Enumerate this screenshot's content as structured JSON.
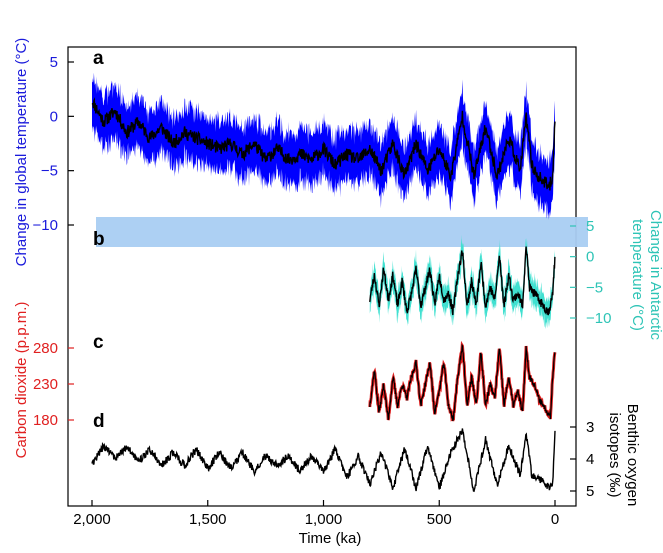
{
  "chart_data": [
    {
      "panel": "a",
      "type": "line",
      "ylabel": "Change in global temperature (°C)",
      "ylabel_color": "#1a1adb",
      "band_color": "#0000ff",
      "yticks": [
        5,
        0,
        -5,
        -10
      ],
      "ylim": [
        -10.5,
        6.5
      ],
      "xlim": [
        2000,
        0
      ],
      "series": [
        {
          "x": [
            2000,
            1950,
            1900,
            1850,
            1800,
            1750,
            1700,
            1650,
            1600,
            1550,
            1500,
            1450,
            1400,
            1350,
            1300,
            1250,
            1200,
            1150,
            1100,
            1050,
            1000,
            950,
            900,
            850,
            800,
            750,
            700,
            650,
            600,
            550,
            500,
            450,
            400,
            350,
            300,
            250,
            200,
            150,
            125,
            100,
            75,
            50,
            25,
            10,
            0
          ],
          "y": [
            1.5,
            -0.5,
            0.5,
            -1.5,
            -0.5,
            -2,
            -1,
            -2.5,
            -1.5,
            -2,
            -2.5,
            -3,
            -2.5,
            -3.5,
            -2.5,
            -4,
            -3,
            -4,
            -3.5,
            -4,
            -3,
            -4.5,
            -3.5,
            -4,
            -3,
            -5,
            -2.5,
            -5.5,
            -2.5,
            -5,
            -3,
            -5.5,
            0,
            -5.5,
            -1,
            -5.5,
            -2,
            -5,
            0,
            -4.5,
            -5.5,
            -6,
            -6.5,
            -5.5,
            0
          ]
        }
      ]
    },
    {
      "panel": "b",
      "type": "line",
      "ylabel": "Change in Antarctic temperature (°C)",
      "ylabel_color": "#2ec4b6",
      "band_color": "#40e0d0",
      "yticks": [
        5,
        0,
        -5,
        -10
      ],
      "ylim": [
        -11,
        6
      ],
      "series": [
        {
          "x": [
            800,
            780,
            760,
            740,
            720,
            700,
            680,
            660,
            640,
            620,
            600,
            580,
            560,
            540,
            520,
            500,
            480,
            460,
            440,
            420,
            400,
            380,
            360,
            340,
            320,
            300,
            280,
            260,
            240,
            220,
            200,
            180,
            160,
            140,
            125,
            110,
            90,
            70,
            50,
            30,
            20,
            10,
            0
          ],
          "y": [
            -7,
            -3,
            -8,
            -2,
            -7,
            -3,
            -8,
            -4,
            -9,
            -6,
            -2,
            -8,
            -5,
            -2,
            -8,
            -3,
            -7,
            -6,
            -9,
            -3,
            1,
            -8,
            -4,
            -8,
            -1,
            -8,
            -5,
            -7,
            0,
            -8,
            -3,
            -7,
            -6,
            -8,
            2,
            -5,
            -6,
            -7,
            -8,
            -9,
            -8,
            -6,
            0
          ]
        }
      ]
    },
    {
      "panel": "c",
      "type": "line",
      "ylabel": "Carbon dioxide (p.p.m.)",
      "ylabel_color": "#e02020",
      "yticks": [
        280,
        230,
        180
      ],
      "ylim": [
        160,
        300
      ],
      "series": [
        {
          "x": [
            800,
            780,
            760,
            740,
            720,
            700,
            680,
            660,
            640,
            620,
            600,
            580,
            560,
            540,
            520,
            500,
            480,
            460,
            440,
            420,
            400,
            380,
            360,
            340,
            320,
            300,
            280,
            260,
            240,
            220,
            200,
            180,
            160,
            140,
            125,
            110,
            90,
            70,
            50,
            30,
            20,
            10,
            0
          ],
          "y": [
            200,
            250,
            190,
            230,
            180,
            240,
            200,
            230,
            210,
            240,
            260,
            200,
            230,
            260,
            190,
            220,
            260,
            200,
            180,
            240,
            285,
            200,
            240,
            200,
            275,
            200,
            230,
            210,
            280,
            200,
            240,
            200,
            220,
            190,
            280,
            240,
            230,
            210,
            200,
            190,
            185,
            240,
            280
          ]
        }
      ]
    },
    {
      "panel": "d",
      "type": "line",
      "ylabel": "Benthic oxygen isotopes (‰)",
      "ylabel_color": "#000000",
      "yticks": [
        3,
        4,
        5
      ],
      "ylim": [
        5.4,
        2.6
      ],
      "series": [
        {
          "x": [
            2000,
            1950,
            1900,
            1850,
            1800,
            1750,
            1700,
            1650,
            1600,
            1550,
            1500,
            1450,
            1400,
            1350,
            1300,
            1250,
            1200,
            1150,
            1100,
            1050,
            1000,
            950,
            900,
            850,
            800,
            750,
            700,
            650,
            600,
            550,
            500,
            450,
            400,
            350,
            300,
            250,
            200,
            150,
            125,
            100,
            75,
            50,
            25,
            10,
            0
          ],
          "y": [
            4.2,
            3.6,
            4.0,
            3.6,
            4.1,
            3.7,
            4.2,
            3.8,
            4.2,
            3.7,
            4.3,
            3.8,
            4.3,
            3.8,
            4.4,
            3.9,
            4.2,
            3.9,
            4.4,
            3.9,
            4.4,
            3.7,
            4.6,
            3.9,
            4.8,
            3.8,
            4.9,
            3.7,
            4.9,
            3.6,
            4.9,
            3.8,
            3.1,
            5.0,
            3.4,
            4.8,
            3.6,
            4.5,
            3.2,
            4.5,
            4.6,
            4.7,
            4.9,
            4.8,
            3.2
          ]
        }
      ]
    }
  ],
  "xaxis": {
    "label": "Time (ka)",
    "ticks": [
      2000,
      1500,
      1000,
      500,
      0
    ],
    "tick_labels": [
      "2,000",
      "1,500",
      "1,000",
      "500",
      "0"
    ],
    "lim": [
      2000,
      0
    ]
  },
  "highlight": {
    "from_temp": -9.2,
    "to_temp": -11.8,
    "color": "#a9cdf2"
  }
}
